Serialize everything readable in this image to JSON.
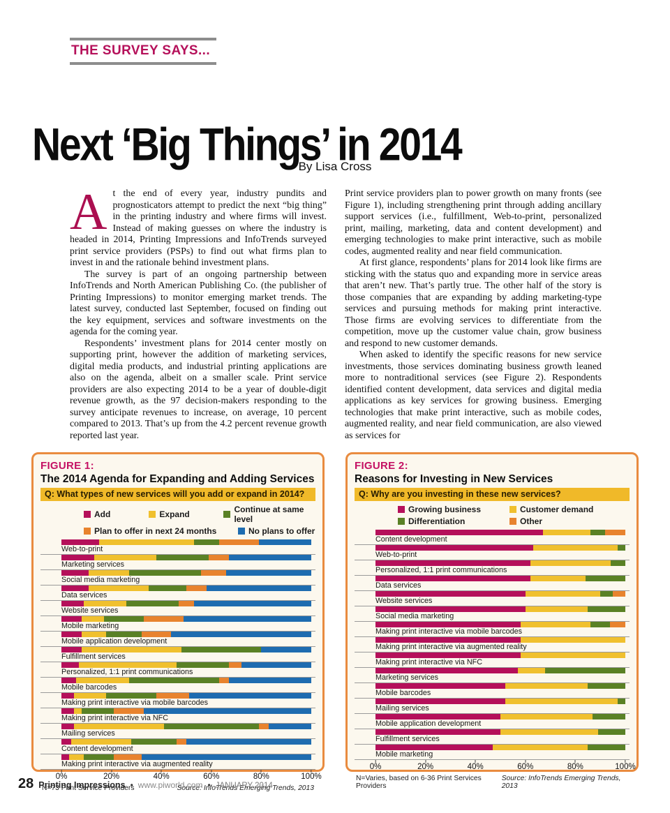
{
  "header": {
    "kicker": "THE SURVEY SAYS...",
    "title": "Next ‘Big Things’ in 2014",
    "byline": "By Lisa Cross"
  },
  "article": {
    "dropcap": "A",
    "col1_p1": "t the end of every year, industry pundits and prognosticators attempt to predict the next “big thing” in the printing industry and where firms will invest. Instead of making guesses on where the industry is headed in 2014, Printing Impressions and InfoTrends surveyed print service providers (PSPs) to find out what firms plan to invest in and the rationale behind investment plans.",
    "col1_p2": "The survey is part of an ongoing partnership between InfoTrends and North American Publishing Co. (the publisher of Printing Impressions) to monitor emerging market trends. The latest survey, conducted last September, focused on finding out the key equipment, services and software investments on the agenda for the coming year.",
    "col1_p3": "Respondents’ investment plans for 2014 center mostly on supporting print, however the addition of marketing services, digital media products, and industrial printing applications are also on the agenda, albeit on a smaller scale. Print service providers are also expecting 2014 to be a year of double-digit revenue growth, as the 97 decision-makers responding to the survey anticipate revenues to increase, on average, 10 percent compared to 2013. That’s up from the 4.2 percent revenue growth reported last year.",
    "col2_p1": "Print service providers plan to power growth on many fronts (see Figure 1), including strengthening print through adding ancillary support services (i.e., fulfillment, Web-to-print, personalized print, mailing, marketing, data and content development) and emerging technologies to make print interactive, such as mobile codes, augmented reality and near field communication.",
    "col2_p2": "At first glance, respondents’ plans for 2014 look like firms are sticking with the status quo and expanding more in service areas that aren’t new. That’s partly true. The other half of the story is those companies that are expanding by adding marketing-type services and pursuing methods for making print interactive. Those firms are evolving services to differentiate from the competition, move up the customer value chain, grow business and respond to new customer demands.",
    "col2_p3": "When asked to identify the specific reasons for new service investments, those services dominating business growth leaned more to nontraditional services (see Figure 2). Respondents identified content development, data services and digital media applications as key services for growing business. Emerging technologies that make print interactive, such as mobile codes, augmented reality, and near field communication, are also viewed as services for"
  },
  "colors": {
    "accent": "#b5105a",
    "figure_border": "#e98b3f",
    "question_bar": "#f0b929",
    "kicker_rule": "#8d8d8d"
  },
  "chart_data": [
    {
      "type": "bar",
      "orientation": "horizontal-stacked",
      "figure_label": "FIGURE 1:",
      "title": "The 2014 Agenda for Expanding and Adding Services",
      "question": "Q: What types of new services will you add or expand in 2014?",
      "x_ticks": [
        "0%",
        "20%",
        "40%",
        "60%",
        "80%",
        "100%"
      ],
      "xlim": [
        0,
        100
      ],
      "grid": false,
      "legend_position": "top",
      "legend_rows": [
        [
          0,
          1,
          2
        ],
        [
          3,
          4
        ]
      ],
      "note": "N=73 Print Service Providers",
      "source": "Source: InfoTrends Emerging Trends, 2013",
      "categories": [
        "Web-to-print",
        "Marketing services",
        "Social media marketing",
        "Data services",
        "Website services",
        "Mobile marketing",
        "Mobile application development",
        "Fulfillment services",
        "Personalized, 1:1 print communications",
        "Mobile barcodes",
        "Making print interactive via mobile barcodes",
        "Making print interactive via NFC",
        "Mailing services",
        "Content development",
        "Making print interactive via augmented reality"
      ],
      "series": [
        {
          "name": "Add",
          "color": "#b5105a",
          "values": [
            15,
            13,
            11,
            11,
            9,
            8,
            8,
            8,
            7,
            6,
            5,
            5,
            5,
            4,
            3
          ]
        },
        {
          "name": "Expand",
          "color": "#f0c02e",
          "values": [
            38,
            25,
            16,
            24,
            17,
            9,
            10,
            40,
            39,
            21,
            13,
            3,
            36,
            24,
            6
          ]
        },
        {
          "name": "Continue at same level",
          "color": "#5a8125",
          "values": [
            10,
            21,
            29,
            15,
            21,
            16,
            14,
            32,
            21,
            36,
            20,
            13,
            38,
            18,
            12
          ]
        },
        {
          "name": "Plan to offer in next 24 months",
          "color": "#e8832e",
          "values": [
            16,
            8,
            10,
            8,
            6,
            16,
            12,
            0,
            5,
            4,
            13,
            12,
            4,
            4,
            11
          ]
        },
        {
          "name": "No plans to offer",
          "color": "#1e6cb0",
          "values": [
            21,
            33,
            34,
            42,
            47,
            51,
            56,
            20,
            28,
            33,
            49,
            67,
            17,
            50,
            68
          ]
        }
      ]
    },
    {
      "type": "bar",
      "orientation": "horizontal-stacked",
      "figure_label": "FIGURE 2:",
      "title": "Reasons for Investing in New Services",
      "question": "Q: Why are you investing in these new services?",
      "x_ticks": [
        "0%",
        "20%",
        "40%",
        "60%",
        "80%",
        "100%"
      ],
      "xlim": [
        0,
        100
      ],
      "grid": false,
      "legend_position": "top",
      "legend_rows": [
        [
          0,
          1
        ],
        [
          2,
          3
        ]
      ],
      "note": "N=Varies, based on 6-36 Print Services Providers",
      "source": "Source: InfoTrends Emerging Trends, 2013",
      "categories": [
        "Content development",
        "Web-to-print",
        "Personalized, 1:1 print communications",
        "Data services",
        "Website services",
        "Social media marketing",
        "Making print interactive via mobile barcodes",
        "Making print interactive via augmented reality",
        "Making print interactive via NFC",
        "Marketing services",
        "Mobile barcodes",
        "Mailing services",
        "Mobile application development",
        "Fulfillment services",
        "Mobile marketing"
      ],
      "series": [
        {
          "name": "Growing business",
          "color": "#b5105a",
          "values": [
            67,
            63,
            62,
            62,
            60,
            60,
            58,
            58,
            58,
            57,
            52,
            52,
            50,
            50,
            47
          ]
        },
        {
          "name": "Customer demand",
          "color": "#f0c02e",
          "values": [
            19,
            34,
            32,
            22,
            30,
            25,
            28,
            42,
            42,
            11,
            33,
            45,
            37,
            39,
            38
          ]
        },
        {
          "name": "Differentiation",
          "color": "#5a8125",
          "values": [
            6,
            3,
            6,
            16,
            5,
            15,
            8,
            0,
            0,
            32,
            15,
            3,
            13,
            11,
            15
          ]
        },
        {
          "name": "Other",
          "color": "#e8832e",
          "values": [
            8,
            0,
            0,
            0,
            5,
            0,
            6,
            0,
            0,
            0,
            0,
            0,
            0,
            0,
            0
          ]
        }
      ]
    }
  ],
  "footer": {
    "page_number": "28",
    "magazine": "Printing Impressions",
    "separator": "•",
    "website": "www.piworld.com",
    "date": "JANUARY 2014"
  }
}
